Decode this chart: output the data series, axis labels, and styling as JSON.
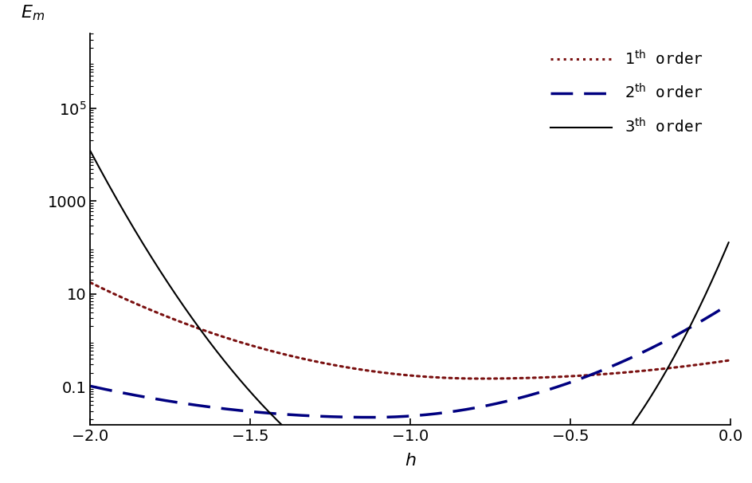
{
  "title": "",
  "xlabel": "h",
  "ylabel": "$E_m$",
  "xlim": [
    -2.0,
    0.0
  ],
  "ylim": [
    0.015,
    4000000.0
  ],
  "xticks": [
    -2.0,
    -1.5,
    -1.0,
    -0.5,
    0.0
  ],
  "ytick_values": [
    0.1,
    10,
    1000,
    100000
  ],
  "ytick_labels": [
    "0.1",
    "10",
    "1000",
    "$10^5$"
  ],
  "background_color": "#ffffff",
  "line1_color": "#7a1010",
  "line2_color": "#000080",
  "line3_color": "#000000",
  "legend_labels": [
    "$1^{\\mathrm{th}}$ order",
    "$2^{\\mathrm{th}}$ order",
    "$3^{\\mathrm{th}}$ order"
  ]
}
